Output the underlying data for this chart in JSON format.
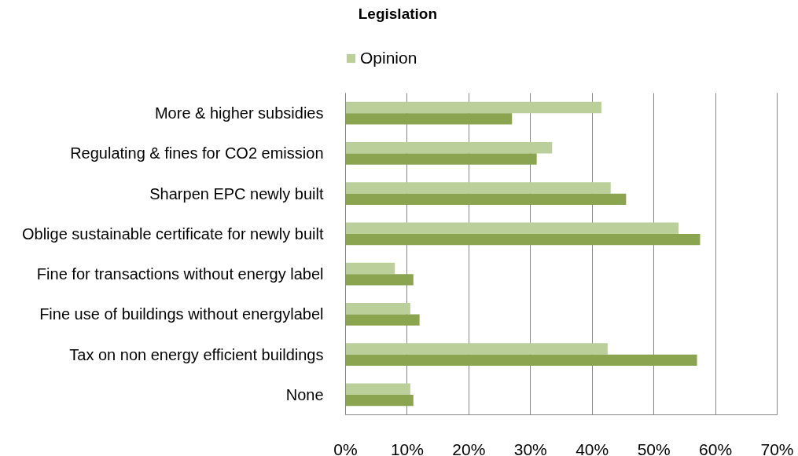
{
  "chart_data": {
    "type": "bar",
    "orientation": "horizontal",
    "title": "Legislation",
    "categories": [
      "More & higher subsidies",
      "Regulating & fines for CO2 emission",
      "Sharpen EPC newly built",
      "Oblige sustainable certificate for newly built",
      "Fine for transactions without energy label",
      "Fine use of buildings without energylabel",
      "Tax on non energy efficient buildings",
      "None"
    ],
    "series": [
      {
        "name": "Opinion",
        "color": "#bacf9a",
        "values": [
          41.5,
          33.5,
          43,
          54,
          8,
          10.5,
          42.5,
          10.5
        ]
      },
      {
        "color": "#8aa44f",
        "values": [
          27,
          31,
          45.5,
          57.5,
          11,
          12,
          57,
          11
        ]
      }
    ],
    "xlim": [
      0,
      70
    ],
    "xticks": [
      {
        "value": 0,
        "label": "0%"
      },
      {
        "value": 10,
        "label": "10%"
      },
      {
        "value": 20,
        "label": "20%"
      },
      {
        "value": 30,
        "label": "30%"
      },
      {
        "value": 40,
        "label": "40%"
      },
      {
        "value": 50,
        "label": "50%"
      },
      {
        "value": 60,
        "label": "60%"
      },
      {
        "value": 70,
        "label": "70%"
      }
    ],
    "grid": "x",
    "legend": "top"
  }
}
